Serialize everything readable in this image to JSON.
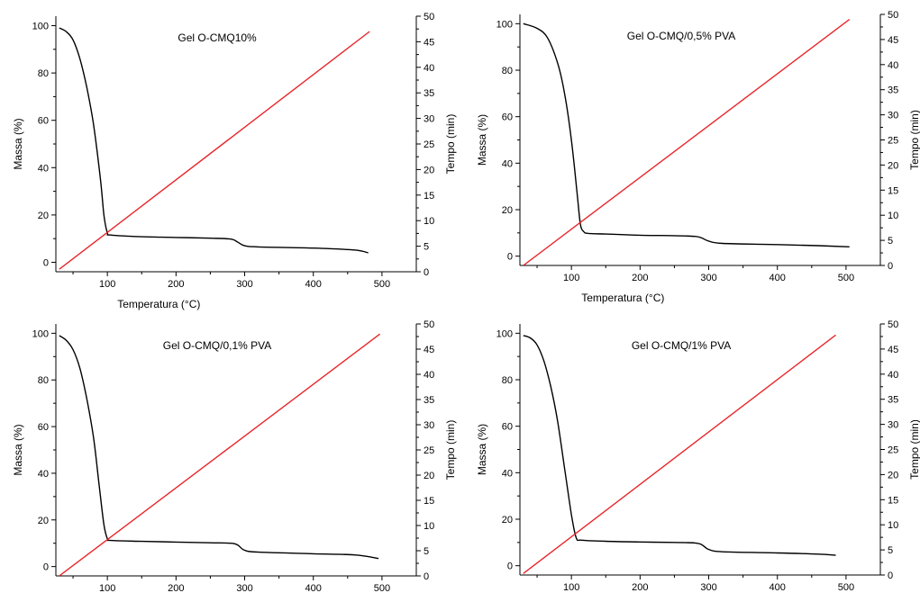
{
  "figure": {
    "colors": {
      "mass_line": "#000000",
      "time_line": "#e8262a",
      "axis": "#000000",
      "background": "#ffffff"
    }
  },
  "chart_data": [
    {
      "type": "line",
      "title": "Gel O-CMQ10%",
      "xlabel": "Temperatura (°C)",
      "ylabel": "Massa (%)",
      "y2label": "Tempo (min)",
      "xlim": [
        25,
        550
      ],
      "ylim": [
        -4,
        104
      ],
      "y2lim": [
        0,
        50
      ],
      "x_ticks": [
        100,
        200,
        300,
        400,
        500
      ],
      "y_ticks": [
        0,
        20,
        40,
        60,
        80,
        100
      ],
      "y2_ticks": [
        0,
        5,
        10,
        15,
        20,
        25,
        30,
        35,
        40,
        45,
        50
      ],
      "grid": false,
      "series": [
        {
          "name": "Massa (%)",
          "axis": "left",
          "x": [
            30,
            40,
            50,
            60,
            70,
            80,
            90,
            95,
            100,
            105,
            150,
            200,
            250,
            280,
            290,
            300,
            320,
            400,
            460,
            480
          ],
          "y": [
            99,
            97.5,
            94,
            86,
            74,
            58,
            35,
            20,
            12.5,
            11.5,
            10.8,
            10.5,
            10.2,
            9.8,
            8.5,
            7,
            6.5,
            6,
            5.2,
            4
          ]
        },
        {
          "name": "Tempo (min)",
          "axis": "right",
          "x": [
            30,
            482
          ],
          "y": [
            0.5,
            47
          ]
        }
      ]
    },
    {
      "type": "line",
      "title": "Gel O-CMQ/0,5% PVA",
      "xlabel": "Temperatura (°C)",
      "ylabel": "Massa (%)",
      "y2label": "Tempo (min)",
      "xlim": [
        25,
        550
      ],
      "ylim": [
        -4,
        104
      ],
      "y2lim": [
        0,
        50
      ],
      "x_ticks": [
        100,
        200,
        300,
        400,
        500
      ],
      "y_ticks": [
        0,
        20,
        40,
        60,
        80,
        100
      ],
      "y2_ticks": [
        0,
        5,
        10,
        15,
        20,
        25,
        30,
        35,
        40,
        45,
        50
      ],
      "grid": false,
      "series": [
        {
          "name": "Massa (%)",
          "axis": "left",
          "x": [
            30,
            50,
            65,
            80,
            90,
            100,
            108,
            113,
            118,
            125,
            150,
            200,
            250,
            280,
            290,
            300,
            320,
            400,
            460,
            505
          ],
          "y": [
            100,
            98,
            94,
            83,
            70,
            50,
            28,
            14,
            10.5,
            9.8,
            9.5,
            9,
            8.8,
            8.5,
            7.8,
            6.5,
            5.5,
            5,
            4.5,
            4
          ]
        },
        {
          "name": "Tempo (min)",
          "axis": "right",
          "x": [
            30,
            505
          ],
          "y": [
            0,
            49
          ]
        }
      ]
    },
    {
      "type": "line",
      "title": "Gel O-CMQ/0,1% PVA",
      "xlabel": "",
      "ylabel": "Massa (%)",
      "y2label": "Tempo (min)",
      "xlim": [
        25,
        550
      ],
      "ylim": [
        -4,
        104
      ],
      "y2lim": [
        0,
        50
      ],
      "x_ticks": [
        100,
        200,
        300,
        400,
        500
      ],
      "y_ticks": [
        0,
        20,
        40,
        60,
        80,
        100
      ],
      "y2_ticks": [
        0,
        5,
        10,
        15,
        20,
        25,
        30,
        35,
        40,
        45,
        50
      ],
      "grid": false,
      "series": [
        {
          "name": "Massa (%)",
          "axis": "left",
          "x": [
            30,
            40,
            50,
            60,
            70,
            80,
            88,
            95,
            100,
            105,
            150,
            200,
            250,
            280,
            290,
            300,
            320,
            400,
            460,
            495
          ],
          "y": [
            99,
            97,
            93,
            85,
            72,
            55,
            35,
            18,
            12,
            11.2,
            10.8,
            10.5,
            10.2,
            10,
            9.2,
            7,
            6.2,
            5.5,
            5,
            3.5
          ]
        },
        {
          "name": "Tempo (min)",
          "axis": "right",
          "x": [
            30,
            497
          ],
          "y": [
            0,
            48
          ]
        }
      ]
    },
    {
      "type": "line",
      "title": "Gel O-CMQ/1% PVA",
      "xlabel": "",
      "ylabel": "Massa (%)",
      "y2label": "Tempo (min)",
      "xlim": [
        25,
        550
      ],
      "ylim": [
        -4,
        104
      ],
      "y2lim": [
        0,
        50
      ],
      "x_ticks": [
        100,
        200,
        300,
        400,
        500
      ],
      "y_ticks": [
        0,
        20,
        40,
        60,
        80,
        100
      ],
      "y2_ticks": [
        0,
        5,
        10,
        15,
        20,
        25,
        30,
        35,
        40,
        45,
        50
      ],
      "grid": false,
      "series": [
        {
          "name": "Massa (%)",
          "axis": "left",
          "x": [
            30,
            40,
            50,
            60,
            70,
            80,
            90,
            100,
            107,
            115,
            150,
            200,
            250,
            280,
            290,
            300,
            320,
            400,
            460,
            485
          ],
          "y": [
            99,
            98,
            95,
            88,
            77,
            62,
            42,
            22,
            12,
            11,
            10.5,
            10.2,
            10,
            9.8,
            9,
            7,
            6,
            5.5,
            5,
            4.5
          ]
        },
        {
          "name": "Tempo (min)",
          "axis": "right",
          "x": [
            30,
            485
          ],
          "y": [
            0.3,
            47.8
          ]
        }
      ]
    }
  ]
}
